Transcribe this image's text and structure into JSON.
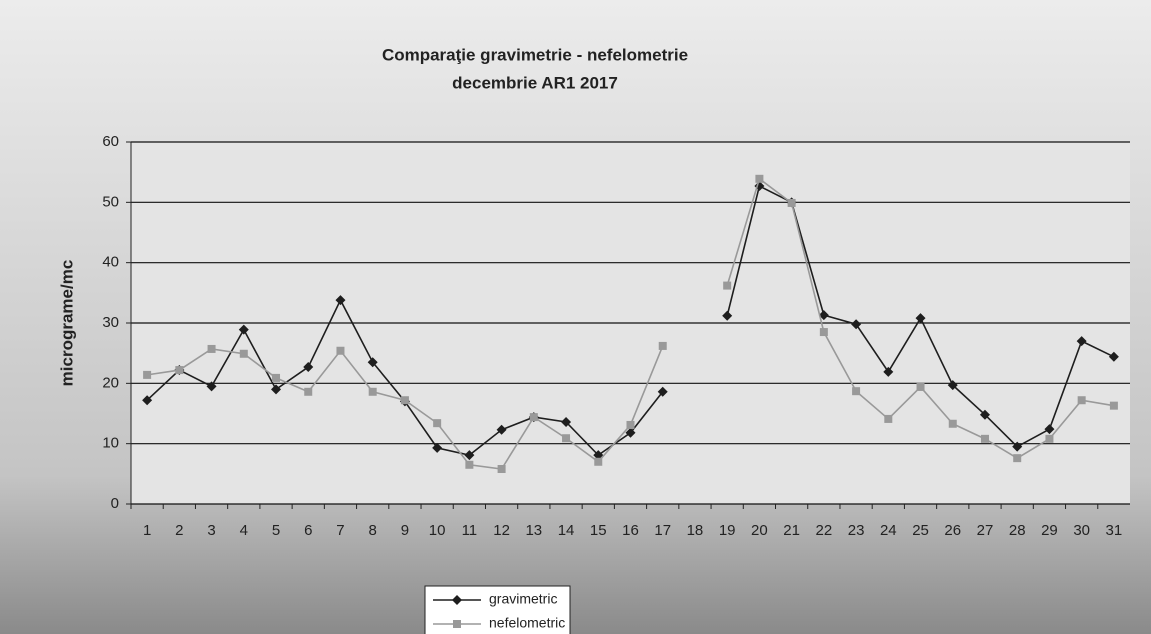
{
  "chart_data": {
    "type": "line",
    "title": "Comparaţie gravimetrie - nefelometrie",
    "subtitle": "decembrie AR1 2017",
    "y_label": "micrograme/mc",
    "categories": [
      "1",
      "2",
      "3",
      "4",
      "5",
      "6",
      "7",
      "8",
      "9",
      "10",
      "11",
      "12",
      "13",
      "14",
      "15",
      "16",
      "17",
      "18",
      "19",
      "20",
      "21",
      "22",
      "23",
      "24",
      "25",
      "26",
      "27",
      "28",
      "29",
      "30",
      "31"
    ],
    "series": [
      {
        "name": "gravimetric",
        "color": "#1e1e1e",
        "marker": "diamond",
        "values": [
          17.2,
          22.2,
          19.5,
          28.9,
          19,
          22.7,
          33.8,
          23.5,
          17,
          9.3,
          8.1,
          12.3,
          14.4,
          13.6,
          8.1,
          11.8,
          18.6,
          null,
          31.2,
          52.7,
          50,
          31.3,
          29.8,
          21.9,
          30.8,
          19.7,
          14.8,
          9.5,
          12.4,
          27,
          24.4
        ]
      },
      {
        "name": "nefelometric",
        "color": "#999999",
        "marker": "square",
        "values": [
          21.4,
          22.2,
          25.7,
          24.9,
          20.9,
          18.6,
          25.4,
          18.6,
          17.2,
          13.4,
          6.5,
          5.8,
          14.4,
          10.9,
          7,
          13.1,
          26.2,
          null,
          36.2,
          53.9,
          49.9,
          28.5,
          18.7,
          14.1,
          19.4,
          13.3,
          10.8,
          7.6,
          10.8,
          17.2,
          16.3
        ]
      }
    ],
    "ylim": [
      0,
      60
    ],
    "yticks": [
      0,
      10,
      20,
      30,
      40,
      50,
      60
    ],
    "grid": true,
    "legend": "bottom"
  }
}
